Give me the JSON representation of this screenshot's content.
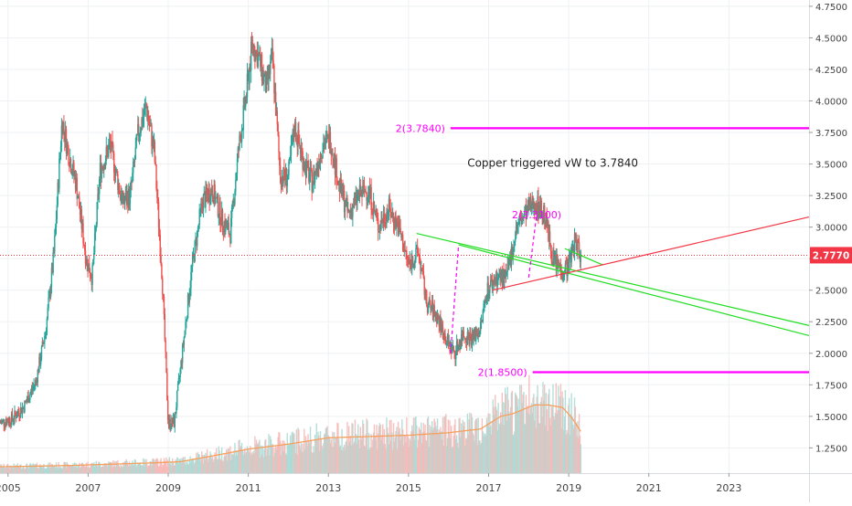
{
  "chart_data": {
    "type": "line",
    "style": "candlestick-weekly-with-volume",
    "title": "",
    "xlabel": "",
    "ylabel": "",
    "x_range": [
      2004.8,
      2025.0
    ],
    "ylim": [
      1.05,
      4.8
    ],
    "grid": true,
    "legend": "none",
    "x_ticks": [
      {
        "value": 2005,
        "label": "2005"
      },
      {
        "value": 2007,
        "label": "2007"
      },
      {
        "value": 2009,
        "label": "2009"
      },
      {
        "value": 2011,
        "label": "2011"
      },
      {
        "value": 2013,
        "label": "2013"
      },
      {
        "value": 2015,
        "label": "2015"
      },
      {
        "value": 2017,
        "label": "2017"
      },
      {
        "value": 2019,
        "label": "2019"
      },
      {
        "value": 2021,
        "label": "2021"
      },
      {
        "value": 2023,
        "label": "2023"
      }
    ],
    "y_ticks": [
      {
        "value": 4.75,
        "label": "4.7500"
      },
      {
        "value": 4.5,
        "label": "4.5000"
      },
      {
        "value": 4.25,
        "label": "4.2500"
      },
      {
        "value": 4.0,
        "label": "4.0000"
      },
      {
        "value": 3.75,
        "label": "3.7500"
      },
      {
        "value": 3.5,
        "label": "3.5000"
      },
      {
        "value": 3.25,
        "label": "3.2500"
      },
      {
        "value": 3.0,
        "label": "3.0000"
      },
      {
        "value": 2.75,
        "label": "2.7500"
      },
      {
        "value": 2.5,
        "label": "2.5000"
      },
      {
        "value": 2.25,
        "label": "2.2500"
      },
      {
        "value": 2.0,
        "label": "2.0000"
      },
      {
        "value": 1.75,
        "label": "1.7500"
      },
      {
        "value": 1.5,
        "label": "1.5000"
      },
      {
        "value": 1.25,
        "label": "1.2500"
      }
    ],
    "price_path": [
      [
        2004.8,
        1.45
      ],
      [
        2005.1,
        1.48
      ],
      [
        2005.4,
        1.58
      ],
      [
        2005.7,
        1.78
      ],
      [
        2005.95,
        2.2
      ],
      [
        2006.15,
        2.8
      ],
      [
        2006.35,
        3.85
      ],
      [
        2006.5,
        3.6
      ],
      [
        2006.7,
        3.35
      ],
      [
        2006.95,
        2.75
      ],
      [
        2007.1,
        2.6
      ],
      [
        2007.3,
        3.45
      ],
      [
        2007.55,
        3.65
      ],
      [
        2007.85,
        3.2
      ],
      [
        2008.05,
        3.25
      ],
      [
        2008.25,
        3.75
      ],
      [
        2008.45,
        3.95
      ],
      [
        2008.65,
        3.6
      ],
      [
        2008.85,
        2.6
      ],
      [
        2009.0,
        1.45
      ],
      [
        2009.15,
        1.45
      ],
      [
        2009.35,
        2.0
      ],
      [
        2009.6,
        2.7
      ],
      [
        2009.85,
        3.2
      ],
      [
        2010.1,
        3.3
      ],
      [
        2010.35,
        3.05
      ],
      [
        2010.55,
        2.95
      ],
      [
        2010.75,
        3.6
      ],
      [
        2010.95,
        4.05
      ],
      [
        2011.1,
        4.45
      ],
      [
        2011.25,
        4.35
      ],
      [
        2011.45,
        4.1
      ],
      [
        2011.6,
        4.35
      ],
      [
        2011.8,
        3.4
      ],
      [
        2012.0,
        3.4
      ],
      [
        2012.15,
        3.8
      ],
      [
        2012.4,
        3.5
      ],
      [
        2012.6,
        3.35
      ],
      [
        2012.85,
        3.65
      ],
      [
        2013.05,
        3.7
      ],
      [
        2013.25,
        3.35
      ],
      [
        2013.5,
        3.1
      ],
      [
        2013.75,
        3.25
      ],
      [
        2014.0,
        3.3
      ],
      [
        2014.25,
        3.0
      ],
      [
        2014.5,
        3.15
      ],
      [
        2014.75,
        3.0
      ],
      [
        2015.0,
        2.7
      ],
      [
        2015.25,
        2.8
      ],
      [
        2015.45,
        2.4
      ],
      [
        2015.7,
        2.3
      ],
      [
        2015.95,
        2.1
      ],
      [
        2016.15,
        2.0
      ],
      [
        2016.35,
        2.15
      ],
      [
        2016.6,
        2.12
      ],
      [
        2016.8,
        2.2
      ],
      [
        2016.95,
        2.5
      ],
      [
        2017.2,
        2.6
      ],
      [
        2017.45,
        2.6
      ],
      [
        2017.7,
        3.0
      ],
      [
        2017.95,
        3.12
      ],
      [
        2018.15,
        3.2
      ],
      [
        2018.4,
        3.1
      ],
      [
        2018.6,
        2.75
      ],
      [
        2018.85,
        2.65
      ],
      [
        2019.0,
        2.7
      ],
      [
        2019.15,
        2.9
      ],
      [
        2019.3,
        2.78
      ]
    ],
    "volume_avg_path": [
      [
        2004.8,
        1.1
      ],
      [
        2006.5,
        1.11
      ],
      [
        2008.5,
        1.13
      ],
      [
        2009.3,
        1.14
      ],
      [
        2010.0,
        1.18
      ],
      [
        2011.0,
        1.24
      ],
      [
        2012.0,
        1.28
      ],
      [
        2013.0,
        1.33
      ],
      [
        2014.0,
        1.34
      ],
      [
        2015.0,
        1.35
      ],
      [
        2016.0,
        1.37
      ],
      [
        2016.8,
        1.4
      ],
      [
        2017.3,
        1.5
      ],
      [
        2017.6,
        1.52
      ],
      [
        2017.9,
        1.56
      ],
      [
        2018.15,
        1.59
      ],
      [
        2018.5,
        1.59
      ],
      [
        2018.85,
        1.57
      ],
      [
        2019.1,
        1.48
      ],
      [
        2019.3,
        1.38
      ]
    ],
    "current_price": {
      "value": 2.777,
      "label": "2.7770",
      "color": "#f23645"
    },
    "levels": [
      {
        "label": "2(3.7840)",
        "value": 3.784,
        "x_start": 2016.05,
        "x_end": 2025.0,
        "color": "#ff00ff"
      },
      {
        "label": "2(1.8500)",
        "value": 1.85,
        "x_start": 2018.1,
        "x_end": 2025.0,
        "color": "#ff00ff"
      }
    ],
    "mid_level_label": {
      "text": "2(3.3100)",
      "x": 2018.2,
      "y": 3.1,
      "color": "#ff00ff"
    },
    "trendlines": [
      {
        "name": "",
        "color": "#22dd22",
        "points": [
          [
            2015.2,
            2.95
          ],
          [
            2025.0,
            2.22
          ]
        ]
      },
      {
        "name": "",
        "color": "#22dd22",
        "points": [
          [
            2016.25,
            2.86
          ],
          [
            2025.0,
            2.14
          ]
        ]
      },
      {
        "name": "",
        "color": "#22dd22",
        "points": [
          [
            2018.9,
            2.83
          ],
          [
            2019.85,
            2.7
          ]
        ]
      },
      {
        "name": "",
        "color": "#f23645",
        "points": [
          [
            2017.1,
            2.5
          ],
          [
            2025.0,
            3.08
          ]
        ]
      }
    ],
    "dashed_lines": [
      {
        "color": "#ff00ff",
        "points": [
          [
            2016.05,
            2.0
          ],
          [
            2016.25,
            2.86
          ]
        ]
      },
      {
        "color": "#ff00ff",
        "points": [
          [
            2018.0,
            2.6
          ],
          [
            2018.2,
            3.1
          ]
        ]
      }
    ],
    "annotation": {
      "text": "Copper triggered vW to 3.7840",
      "x": 2018.6,
      "y": 3.48
    }
  },
  "colors": {
    "up": "#26a69a",
    "down": "#ef5350",
    "volume_avg": "#f5a15e",
    "axis_text": "#444444",
    "grid": "#eef0f3"
  }
}
